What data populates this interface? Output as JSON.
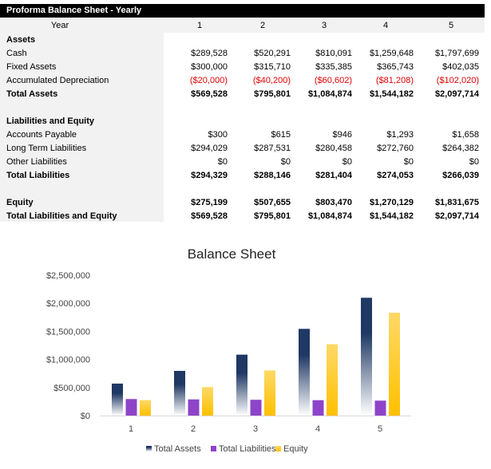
{
  "table": {
    "title": "Proforma Balance Sheet - Yearly",
    "year_label": "Year",
    "years": [
      "1",
      "2",
      "3",
      "4",
      "5"
    ],
    "rows": [
      {
        "label": "Assets",
        "values": [],
        "style": "bold"
      },
      {
        "label": "Cash",
        "values": [
          "$289,528",
          "$520,291",
          "$810,091",
          "$1,259,648",
          "$1,797,699"
        ],
        "style": ""
      },
      {
        "label": "Fixed Assets",
        "values": [
          "$300,000",
          "$315,710",
          "$335,385",
          "$365,743",
          "$402,035"
        ],
        "style": ""
      },
      {
        "label": "Accumulated Depreciation",
        "values": [
          "($20,000)",
          "($40,200)",
          "($60,602)",
          "($81,208)",
          "($102,020)"
        ],
        "style": "neg"
      },
      {
        "label": "Total Assets",
        "values": [
          "$569,528",
          "$795,801",
          "$1,084,874",
          "$1,544,182",
          "$2,097,714"
        ],
        "style": "bold"
      },
      {
        "label": "",
        "values": [],
        "style": ""
      },
      {
        "label": "Liabilities and Equity",
        "values": [],
        "style": "bold"
      },
      {
        "label": "Accounts Payable",
        "values": [
          "$300",
          "$615",
          "$946",
          "$1,293",
          "$1,658"
        ],
        "style": ""
      },
      {
        "label": "Long Term Liabilities",
        "values": [
          "$294,029",
          "$287,531",
          "$280,458",
          "$272,760",
          "$264,382"
        ],
        "style": ""
      },
      {
        "label": "Other Liabilities",
        "values": [
          "$0",
          "$0",
          "$0",
          "$0",
          "$0"
        ],
        "style": ""
      },
      {
        "label": "Total Liabilities",
        "values": [
          "$294,329",
          "$288,146",
          "$281,404",
          "$274,053",
          "$266,039"
        ],
        "style": "bold"
      },
      {
        "label": "",
        "values": [],
        "style": ""
      },
      {
        "label": "Equity",
        "values": [
          "$275,199",
          "$507,655",
          "$803,470",
          "$1,270,129",
          "$1,831,675"
        ],
        "style": "bold"
      },
      {
        "label": "Total Liabilities and Equity",
        "values": [
          "$569,528",
          "$795,801",
          "$1,084,874",
          "$1,544,182",
          "$2,097,714"
        ],
        "style": "bold"
      }
    ]
  },
  "chart_data": {
    "type": "bar",
    "title": "Balance Sheet",
    "categories": [
      "1",
      "2",
      "3",
      "4",
      "5"
    ],
    "series": [
      {
        "name": "Total Assets",
        "values": [
          569528,
          795801,
          1084874,
          1544182,
          2097714
        ],
        "color": "#1f3864"
      },
      {
        "name": "Total Liabilities",
        "values": [
          294329,
          288146,
          281404,
          274053,
          266039
        ],
        "color": "#8e44c9"
      },
      {
        "name": "Equity",
        "values": [
          275199,
          507655,
          803470,
          1270129,
          1831675
        ],
        "color": "#ffc000"
      }
    ],
    "ylim": [
      0,
      2500000
    ],
    "yticks": [
      "$0",
      "$500,000",
      "$1,000,000",
      "$1,500,000",
      "$2,000,000",
      "$2,500,000"
    ],
    "grid": false,
    "legend": "bottom"
  }
}
